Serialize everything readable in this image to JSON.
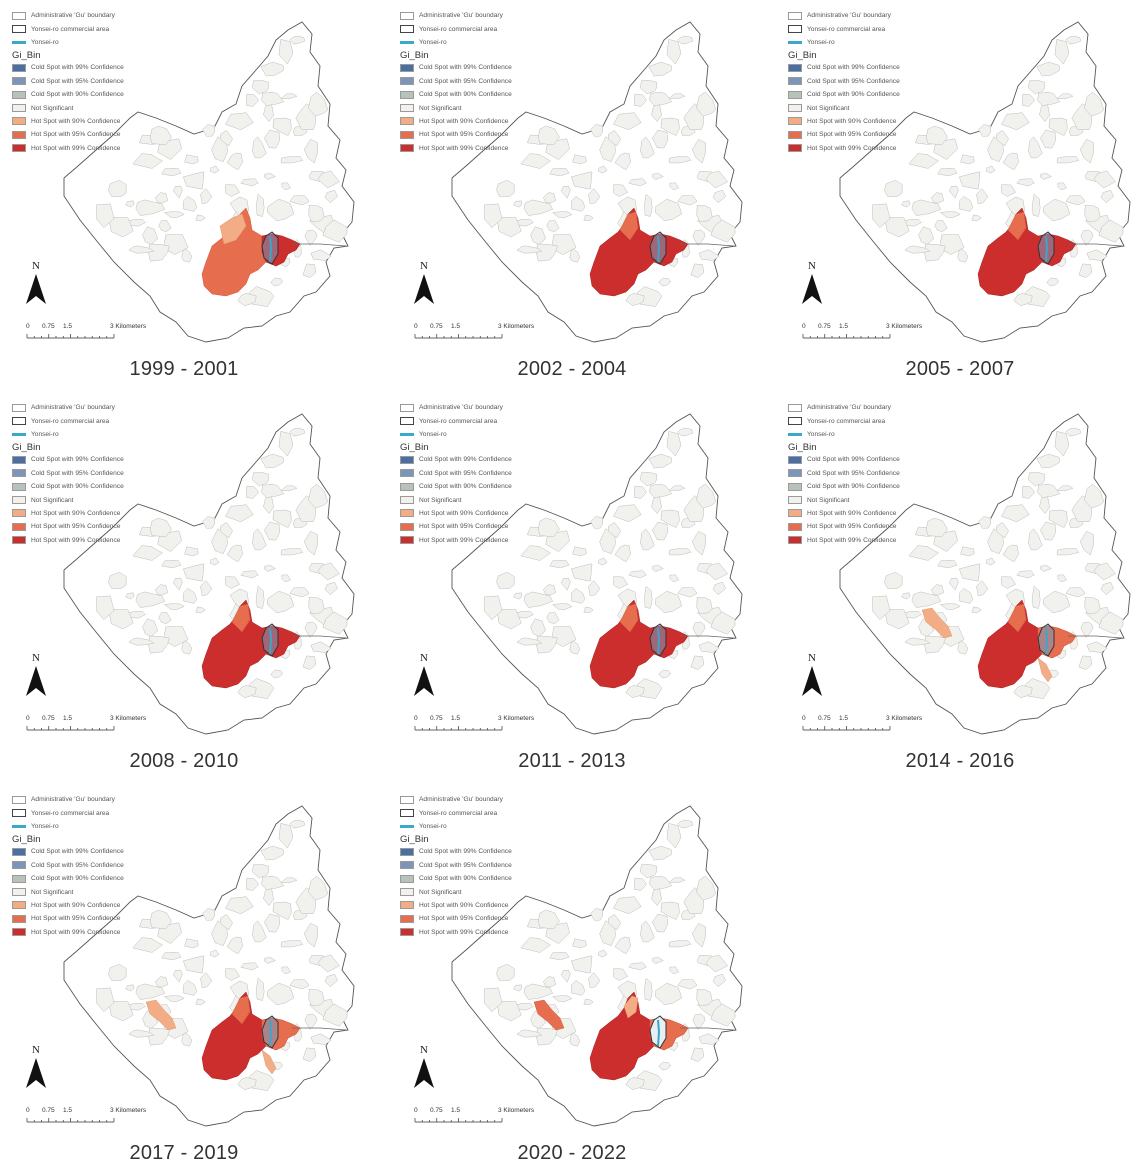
{
  "legend": {
    "boundary": "Administrative 'Gu' boundary",
    "commercial": "Yonsei-ro commercial area",
    "road": "Yonsei-ro",
    "field": "Gi_Bin",
    "classes": [
      {
        "label": "Cold Spot with 99% Confidence",
        "color": "#4a6fa5"
      },
      {
        "label": "Cold Spot with 95% Confidence",
        "color": "#7b96b8"
      },
      {
        "label": "Cold Spot with 90% Confidence",
        "color": "#b7c3ba"
      },
      {
        "label": "Not Significant",
        "color": "#f1f1ee"
      },
      {
        "label": "Hot Spot with 90% Confidence",
        "color": "#f3ad86"
      },
      {
        "label": "Hot Spot with 95% Confidence",
        "color": "#e66e4e"
      },
      {
        "label": "Hot Spot with 99% Confidence",
        "color": "#cc2d2d"
      }
    ]
  },
  "north_label": "N",
  "scale": {
    "labels": [
      "0",
      "0.75",
      "1.5",
      "3 Kilometers"
    ]
  },
  "colors": {
    "road": "#3aa8c8",
    "boundary": "#555555",
    "not_significant": "#f1f1ee"
  },
  "panels": [
    {
      "period": "1999 - 2001",
      "pattern": "early"
    },
    {
      "period": "2002 - 2004",
      "pattern": "cluster"
    },
    {
      "period": "2005 - 2007",
      "pattern": "cluster"
    },
    {
      "period": "2008 - 2010",
      "pattern": "cluster"
    },
    {
      "period": "2011 - 2013",
      "pattern": "cluster"
    },
    {
      "period": "2014 - 2016",
      "pattern": "cluster_nw90"
    },
    {
      "period": "2017 - 2019",
      "pattern": "cluster_nw90"
    },
    {
      "period": "2020 - 2022",
      "pattern": "late"
    }
  ]
}
